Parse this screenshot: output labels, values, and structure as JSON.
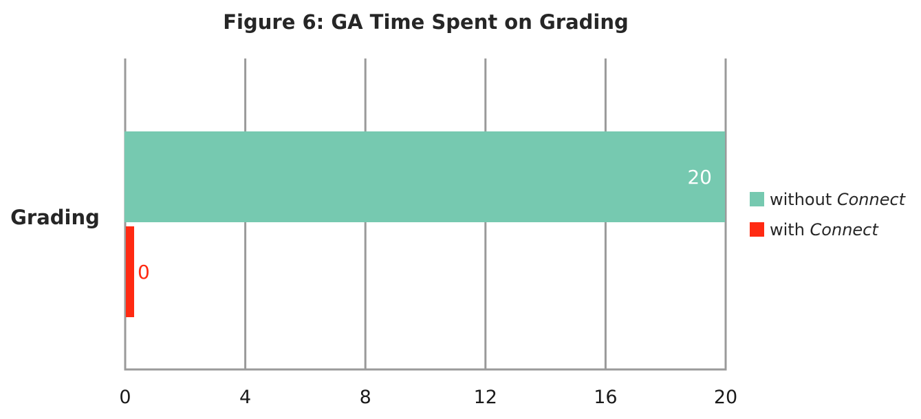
{
  "chart_data": {
    "type": "bar",
    "orientation": "horizontal",
    "title": "Figure 6: GA Time Spent on Grading",
    "categories": [
      "Grading"
    ],
    "series": [
      {
        "name_prefix": "without",
        "name_emphasis": "Connect",
        "values": [
          20
        ],
        "color": "#76c9b0",
        "label_color": "#ffffff",
        "label_position": "inside-end"
      },
      {
        "name_prefix": "with",
        "name_emphasis": "Connect",
        "values": [
          0
        ],
        "color": "#ff2a12",
        "label_color": "#ff2a12",
        "label_position": "outside-end"
      }
    ],
    "xlim": [
      0,
      20
    ],
    "xticks": [
      0,
      4,
      8,
      12,
      16,
      20
    ],
    "xlabel": "",
    "ylabel": "",
    "grid": true,
    "legend_position": "right"
  }
}
